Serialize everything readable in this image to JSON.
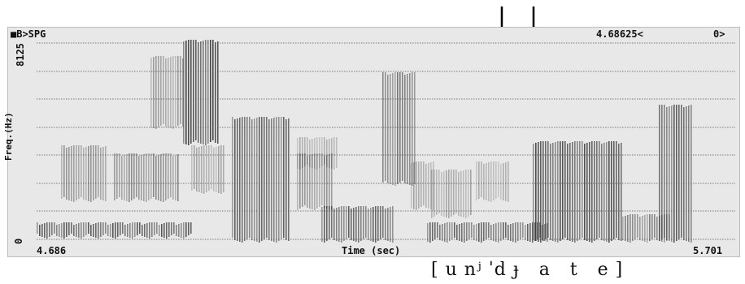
{
  "window": {
    "title": "■B>SPG",
    "cursor_time": "4.68625<",
    "channel": "0>"
  },
  "axes": {
    "y_label": "Freq.(Hz)",
    "y_max": "8125",
    "y_min": "0",
    "x_start": "4.686",
    "x_label": "Time (sec)",
    "x_end": "5.701"
  },
  "transcription": "[ u nʲ ˈd ɟ   a   t   e ]",
  "colors": {
    "background": "#e8e8e8",
    "ink": "#202020",
    "gridline": "#555555",
    "arrow": "#000000"
  },
  "spectrogram": {
    "gridline_count": 8,
    "arrows": [
      "arrow-1",
      "arrow-2"
    ]
  }
}
